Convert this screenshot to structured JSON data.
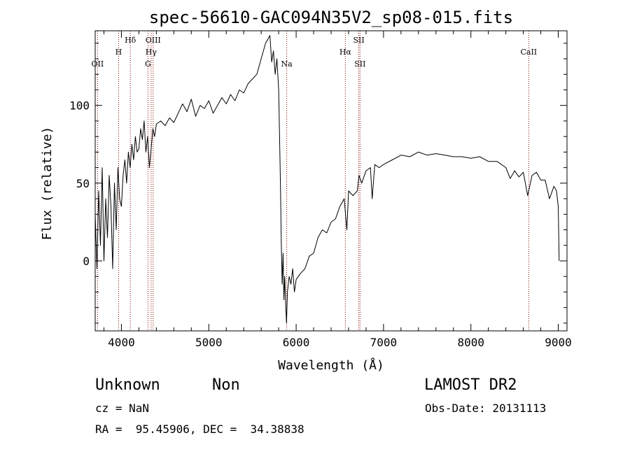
{
  "chart_data": {
    "type": "line",
    "title": "spec-56610-GAC094N35V2_sp08-015.fits",
    "xlabel": "Wavelength (Å)",
    "ylabel": "Flux (relative)",
    "xlim": [
      3700,
      9100
    ],
    "ylim": [
      -45,
      148
    ],
    "xticks": [
      4000,
      5000,
      6000,
      7000,
      8000,
      9000
    ],
    "yticks": [
      0,
      50,
      100
    ],
    "grid": false,
    "series": [
      {
        "x": [
          3700,
          3720,
          3740,
          3760,
          3780,
          3800,
          3820,
          3840,
          3860,
          3880,
          3900,
          3920,
          3940,
          3960,
          3980,
          4000,
          4020,
          4040,
          4060,
          4080,
          4100,
          4120,
          4140,
          4160,
          4180,
          4200,
          4220,
          4240,
          4260,
          4280,
          4300,
          4320,
          4340,
          4360,
          4380,
          4400,
          4450,
          4500,
          4550,
          4600,
          4650,
          4700,
          4750,
          4800,
          4850,
          4900,
          4950,
          5000,
          5050,
          5100,
          5150,
          5200,
          5250,
          5300,
          5350,
          5400,
          5450,
          5500,
          5550,
          5600,
          5650,
          5700,
          5720,
          5740,
          5760,
          5780,
          5800,
          5810,
          5820,
          5830,
          5840,
          5850,
          5860,
          5870,
          5880,
          5890,
          5900,
          5920,
          5940,
          5960,
          5980,
          6000,
          6050,
          6100,
          6150,
          6200,
          6250,
          6300,
          6350,
          6400,
          6450,
          6500,
          6550,
          6580,
          6600,
          6650,
          6700,
          6720,
          6750,
          6800,
          6850,
          6870,
          6900,
          6950,
          7000,
          7100,
          7200,
          7300,
          7400,
          7500,
          7600,
          7700,
          7800,
          7900,
          8000,
          8100,
          8200,
          8300,
          8400,
          8450,
          8500,
          8550,
          8600,
          8650,
          8700,
          8750,
          8800,
          8850,
          8900,
          8950,
          8980,
          9000,
          9010
        ],
        "y": [
          30,
          -5,
          45,
          10,
          60,
          0,
          40,
          15,
          55,
          35,
          -5,
          50,
          20,
          60,
          40,
          35,
          55,
          65,
          50,
          70,
          60,
          75,
          65,
          80,
          70,
          72,
          85,
          78,
          90,
          70,
          80,
          60,
          72,
          85,
          80,
          88,
          90,
          87,
          92,
          89,
          95,
          101,
          96,
          104,
          93,
          100,
          98,
          103,
          95,
          100,
          105,
          101,
          107,
          103,
          110,
          108,
          114,
          117,
          120,
          130,
          140,
          145,
          128,
          135,
          120,
          130,
          110,
          80,
          50,
          10,
          -15,
          5,
          -25,
          -10,
          -28,
          -40,
          -20,
          -10,
          -15,
          -5,
          -20,
          -12,
          -8,
          -5,
          3,
          5,
          15,
          20,
          18,
          25,
          27,
          35,
          40,
          20,
          45,
          42,
          45,
          55,
          50,
          58,
          60,
          40,
          62,
          60,
          62,
          65,
          68,
          67,
          70,
          68,
          69,
          68,
          67,
          67,
          66,
          67,
          64,
          64,
          60,
          53,
          58,
          54,
          57,
          42,
          55,
          57,
          52,
          52,
          40,
          48,
          45,
          35,
          0
        ]
      }
    ],
    "lines": [
      {
        "label": "OII",
        "x": 3727,
        "row": 3
      },
      {
        "label": "H",
        "x": 3968,
        "row": 2
      },
      {
        "label": "Hδ",
        "x": 4102,
        "row": 1
      },
      {
        "label": "OIII",
        "x": 4363,
        "row": 1
      },
      {
        "label": "Hγ",
        "x": 4340,
        "row": 2
      },
      {
        "label": "G",
        "x": 4304,
        "row": 3
      },
      {
        "label": "Na",
        "x": 5892,
        "row": 3
      },
      {
        "label": "Hα",
        "x": 6563,
        "row": 2
      },
      {
        "label": "SII",
        "x": 6717,
        "row": 1
      },
      {
        "label": "SII",
        "x": 6731,
        "row": 3
      },
      {
        "label": "CaII",
        "x": 8662,
        "row": 2
      }
    ]
  },
  "footer": {
    "class": "Unknown",
    "subclass": "Non",
    "cz": "cz = NaN",
    "radec": "RA =  95.45906, DEC =  34.38838",
    "survey": "LAMOST DR2",
    "obsdate": "Obs-Date: 20131113"
  }
}
